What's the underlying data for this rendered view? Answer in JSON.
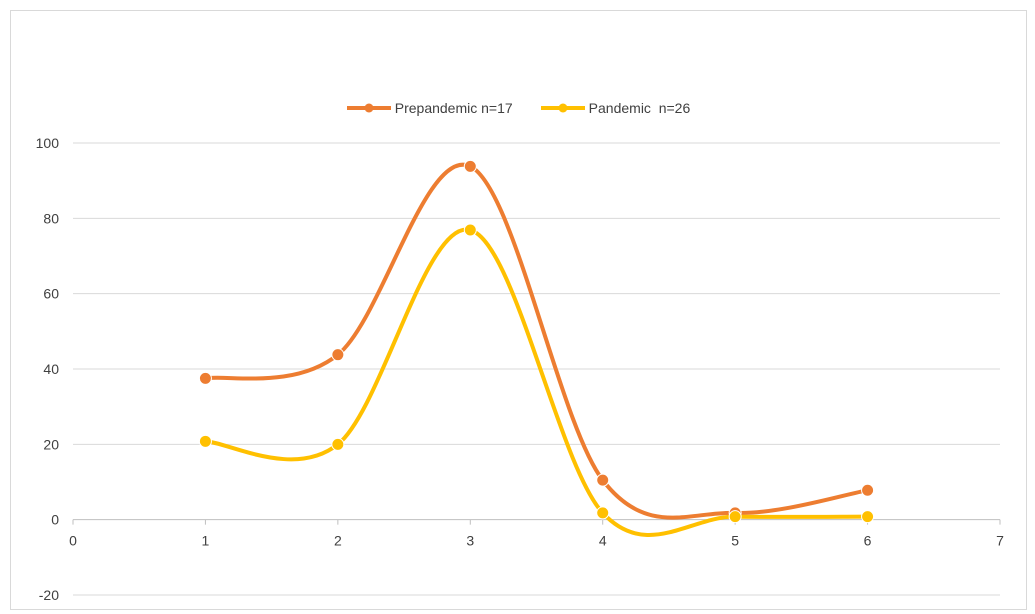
{
  "chart_data": {
    "type": "line",
    "smooth": true,
    "x": [
      1,
      2,
      3,
      4,
      5,
      6
    ],
    "xlim": [
      0,
      7
    ],
    "ylim": [
      -20,
      100
    ],
    "x_ticks": [
      "0",
      "1",
      "2",
      "3",
      "4",
      "5",
      "6",
      "7"
    ],
    "y_ticks": [
      "100",
      "80",
      "60",
      "40",
      "20",
      "0",
      "-20"
    ],
    "grid": "horizontal",
    "legend_position": "top",
    "series": [
      {
        "name": "Prepandemic n=17",
        "color": "#ED7D31",
        "values": [
          37.5,
          43.8,
          93.8,
          10.5,
          1.8,
          7.8
        ]
      },
      {
        "name": "Pandemic  n=26",
        "color": "#FFC000",
        "values": [
          20.8,
          20.0,
          76.9,
          1.8,
          0.8,
          0.8
        ]
      }
    ]
  }
}
